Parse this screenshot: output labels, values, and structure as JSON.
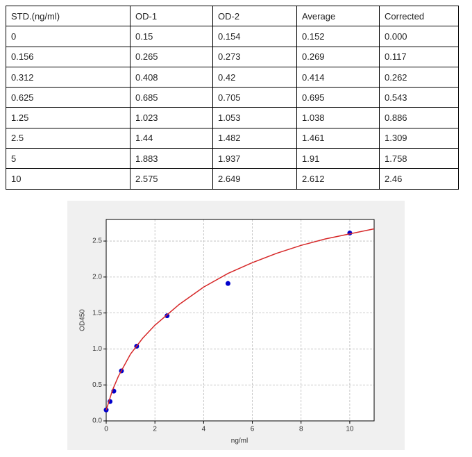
{
  "table": {
    "header": [
      "STD.(ng/ml)",
      "OD-1",
      "OD-2",
      "Average",
      "Corrected"
    ],
    "rows": [
      [
        "0",
        "0.15",
        "0.154",
        "0.152",
        "0.000"
      ],
      [
        "0.156",
        "0.265",
        "0.273",
        "0.269",
        "0.117"
      ],
      [
        "0.312",
        "0.408",
        "0.42",
        "0.414",
        "0.262"
      ],
      [
        "0.625",
        "0.685",
        "0.705",
        "0.695",
        "0.543"
      ],
      [
        "1.25",
        "1.023",
        "1.053",
        "1.038",
        "0.886"
      ],
      [
        "2.5",
        "1.44",
        "1.482",
        "1.461",
        "1.309"
      ],
      [
        "5",
        "1.883",
        "1.937",
        "1.91",
        "1.758"
      ],
      [
        "10",
        "2.575",
        "2.649",
        "2.612",
        "2.46"
      ]
    ]
  },
  "chart_data": {
    "type": "scatter",
    "xlabel": "ng/ml",
    "ylabel": "OD450",
    "series": [
      {
        "type": "scatter",
        "color": "#0000cc",
        "x": [
          0,
          0.156,
          0.312,
          0.625,
          1.25,
          2.5,
          5,
          10
        ],
        "values": [
          0.152,
          0.269,
          0.414,
          0.695,
          1.038,
          1.461,
          1.91,
          2.612
        ]
      },
      {
        "type": "line",
        "color": "#d62728",
        "x": [
          0,
          0.25,
          0.5,
          1,
          1.5,
          2,
          3,
          4,
          5,
          6,
          7,
          8,
          9,
          10,
          11
        ],
        "values": [
          0.15,
          0.42,
          0.62,
          0.93,
          1.15,
          1.33,
          1.62,
          1.86,
          2.05,
          2.2,
          2.33,
          2.44,
          2.53,
          2.6,
          2.67
        ]
      }
    ],
    "xlim": [
      0,
      11
    ],
    "ylim": [
      0,
      2.8
    ],
    "xticks": [
      0,
      2,
      4,
      6,
      8,
      10
    ],
    "yticks": [
      {
        "value": 0,
        "label": "0.0"
      },
      0.5,
      {
        "value": 1,
        "label": "1.0"
      },
      1.5,
      {
        "value": 2,
        "label": "2.0"
      },
      2.5
    ],
    "grid": true
  }
}
